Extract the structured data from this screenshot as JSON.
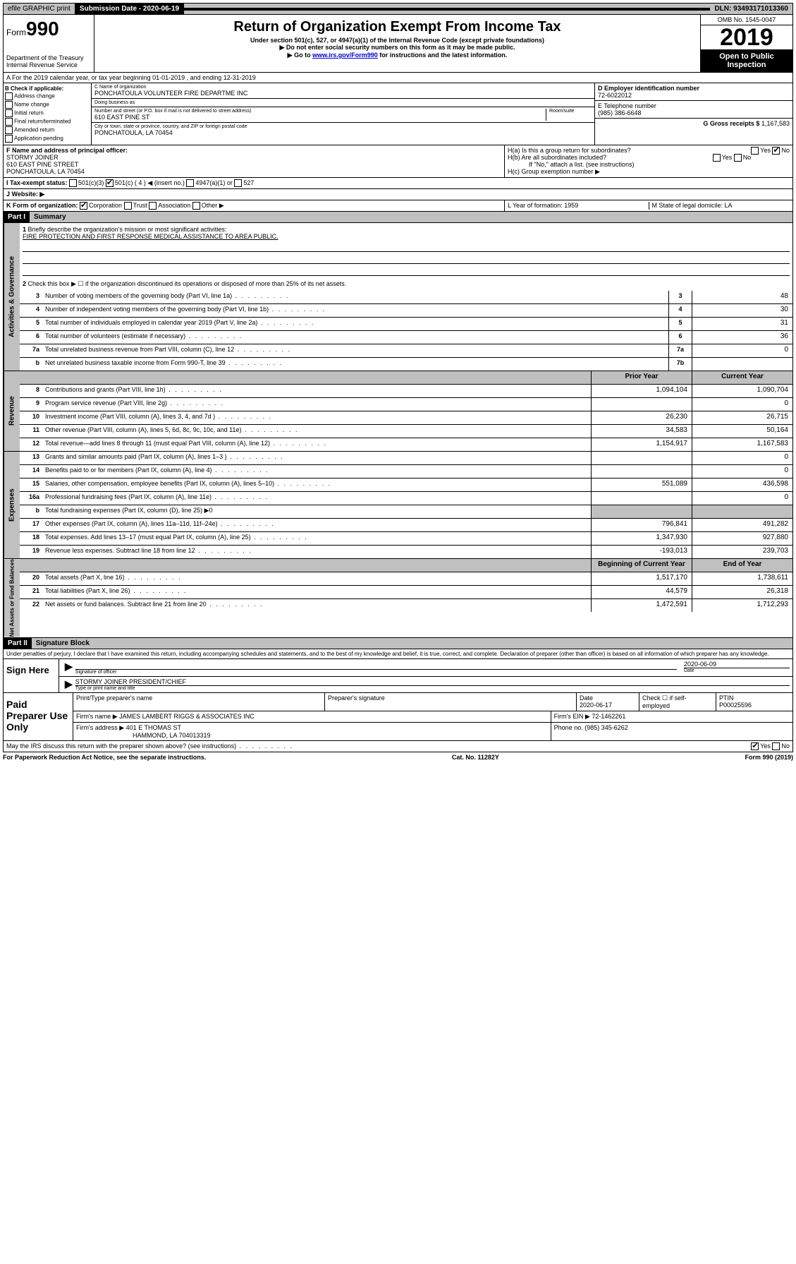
{
  "topbar": {
    "efile": "efile GRAPHIC print",
    "submission_label": "Submission Date - 2020-06-19",
    "dln": "DLN: 93493171013360"
  },
  "header": {
    "form_label": "Form",
    "form_num": "990",
    "dept": "Department of the Treasury\nInternal Revenue Service",
    "title": "Return of Organization Exempt From Income Tax",
    "subtitle": "Under section 501(c), 527, or 4947(a)(1) of the Internal Revenue Code (except private foundations)",
    "note1": "▶ Do not enter social security numbers on this form as it may be made public.",
    "note2_pre": "▶ Go to ",
    "note2_link": "www.irs.gov/Form990",
    "note2_post": " for instructions and the latest information.",
    "omb": "OMB No. 1545-0047",
    "year": "2019",
    "open": "Open to Public Inspection"
  },
  "row_a": "A For the 2019 calendar year, or tax year beginning 01-01-2019    , and ending 12-31-2019",
  "col_b": {
    "header": "B Check if applicable:",
    "items": [
      "Address change",
      "Name change",
      "Initial return",
      "Final return/terminated",
      "Amended return",
      "Application pending"
    ]
  },
  "col_c": {
    "name_label": "C Name of organization",
    "name": "PONCHATOULA VOLUNTEER FIRE DEPARTME INC",
    "dba_label": "Doing business as",
    "addr_label": "Number and street (or P.O. box if mail is not delivered to street address)",
    "room_label": "Room/suite",
    "addr": "610 EAST PINE ST",
    "city_label": "City or town, state or province, country, and ZIP or foreign postal code",
    "city": "PONCHATOULA, LA  70454"
  },
  "col_d": {
    "ein_label": "D Employer identification number",
    "ein": "72-6022012",
    "phone_label": "E Telephone number",
    "phone": "(985) 386-6648",
    "gross_label": "G Gross receipts $",
    "gross": "1,167,583"
  },
  "row_f": {
    "label": "F  Name and address of principal officer:",
    "name": "STORMY JOINER",
    "addr1": "610 EAST PINE STREET",
    "addr2": "PONCHATOULA, LA  70454"
  },
  "row_h": {
    "ha": "H(a)  Is this a group return for subordinates?",
    "hb": "H(b)  Are all subordinates included?",
    "hb_note": "If \"No,\" attach a list. (see instructions)",
    "hc": "H(c)  Group exemption number ▶"
  },
  "row_i": {
    "label": "I   Tax-exempt status:",
    "opts": [
      "501(c)(3)",
      "501(c) ( 4 ) ◀ (insert no.)",
      "4947(a)(1) or",
      "527"
    ]
  },
  "row_j": "J   Website: ▶",
  "row_k": {
    "label": "K Form of organization:",
    "opts": [
      "Corporation",
      "Trust",
      "Association",
      "Other ▶"
    ],
    "l": "L Year of formation: 1959",
    "m": "M State of legal domicile: LA"
  },
  "part1": {
    "header": "Part I",
    "title": "Summary",
    "line1": "Briefly describe the organization's mission or most significant activities:",
    "mission": "FIRE PROTECTION AND FIRST RESPONSE MEDICAL ASSISTANCE TO AREA PUBLIC.",
    "line2": "Check this box ▶ ☐  if the organization discontinued its operations or disposed of more than 25% of its net assets."
  },
  "gov_lines": [
    {
      "num": "3",
      "desc": "Number of voting members of the governing body (Part VI, line 1a)",
      "box": "3",
      "val": "48"
    },
    {
      "num": "4",
      "desc": "Number of independent voting members of the governing body (Part VI, line 1b)",
      "box": "4",
      "val": "30"
    },
    {
      "num": "5",
      "desc": "Total number of individuals employed in calendar year 2019 (Part V, line 2a)",
      "box": "5",
      "val": "31"
    },
    {
      "num": "6",
      "desc": "Total number of volunteers (estimate if necessary)",
      "box": "6",
      "val": "36"
    },
    {
      "num": "7a",
      "desc": "Total unrelated business revenue from Part VIII, column (C), line 12",
      "box": "7a",
      "val": "0"
    },
    {
      "num": "b",
      "desc": "Net unrelated business taxable income from Form 990-T, line 39",
      "box": "7b",
      "val": ""
    }
  ],
  "col_headers": {
    "prior": "Prior Year",
    "current": "Current Year"
  },
  "revenue_lines": [
    {
      "num": "8",
      "desc": "Contributions and grants (Part VIII, line 1h)",
      "prior": "1,094,104",
      "current": "1,090,704"
    },
    {
      "num": "9",
      "desc": "Program service revenue (Part VIII, line 2g)",
      "prior": "",
      "current": "0"
    },
    {
      "num": "10",
      "desc": "Investment income (Part VIII, column (A), lines 3, 4, and 7d )",
      "prior": "26,230",
      "current": "26,715"
    },
    {
      "num": "11",
      "desc": "Other revenue (Part VIII, column (A), lines 5, 6d, 8c, 9c, 10c, and 11e)",
      "prior": "34,583",
      "current": "50,164"
    },
    {
      "num": "12",
      "desc": "Total revenue—add lines 8 through 11 (must equal Part VIII, column (A), line 12)",
      "prior": "1,154,917",
      "current": "1,167,583"
    }
  ],
  "expense_lines": [
    {
      "num": "13",
      "desc": "Grants and similar amounts paid (Part IX, column (A), lines 1–3 )",
      "prior": "",
      "current": "0"
    },
    {
      "num": "14",
      "desc": "Benefits paid to or for members (Part IX, column (A), line 4)",
      "prior": "",
      "current": "0"
    },
    {
      "num": "15",
      "desc": "Salaries, other compensation, employee benefits (Part IX, column (A), lines 5–10)",
      "prior": "551,089",
      "current": "436,598"
    },
    {
      "num": "16a",
      "desc": "Professional fundraising fees (Part IX, column (A), line 11e)",
      "prior": "",
      "current": "0"
    },
    {
      "num": "b",
      "desc": "Total fundraising expenses (Part IX, column (D), line 25) ▶0",
      "prior": "",
      "current": "",
      "nobox": true
    },
    {
      "num": "17",
      "desc": "Other expenses (Part IX, column (A), lines 11a–11d, 11f–24e)",
      "prior": "796,841",
      "current": "491,282"
    },
    {
      "num": "18",
      "desc": "Total expenses. Add lines 13–17 (must equal Part IX, column (A), line 25)",
      "prior": "1,347,930",
      "current": "927,880"
    },
    {
      "num": "19",
      "desc": "Revenue less expenses. Subtract line 18 from line 12",
      "prior": "-193,013",
      "current": "239,703"
    }
  ],
  "net_headers": {
    "begin": "Beginning of Current Year",
    "end": "End of Year"
  },
  "net_lines": [
    {
      "num": "20",
      "desc": "Total assets (Part X, line 16)",
      "prior": "1,517,170",
      "current": "1,738,611"
    },
    {
      "num": "21",
      "desc": "Total liabilities (Part X, line 26)",
      "prior": "44,579",
      "current": "26,318"
    },
    {
      "num": "22",
      "desc": "Net assets or fund balances. Subtract line 21 from line 20",
      "prior": "1,472,591",
      "current": "1,712,293"
    }
  ],
  "part2": {
    "header": "Part II",
    "title": "Signature Block",
    "decl": "Under penalties of perjury, I declare that I have examined this return, including accompanying schedules and statements, and to the best of my knowledge and belief, it is true, correct, and complete. Declaration of preparer (other than officer) is based on all information of which preparer has any knowledge."
  },
  "sign": {
    "label": "Sign Here",
    "sig_label": "Signature of officer",
    "date": "2020-06-09",
    "date_label": "Date",
    "name": "STORMY JOINER  PRESIDENT/CHIEF",
    "name_label": "Type or print name and title"
  },
  "prep": {
    "label": "Paid Preparer Use Only",
    "h1": "Print/Type preparer's name",
    "h2": "Preparer's signature",
    "h3": "Date",
    "date": "2020-06-17",
    "h4": "Check ☐ if self-employed",
    "h5": "PTIN",
    "ptin": "P00025596",
    "firm_label": "Firm's name    ▶",
    "firm": "JAMES LAMBERT RIGGS & ASSOCIATES INC",
    "ein_label": "Firm's EIN ▶",
    "ein": "72-1462261",
    "addr_label": "Firm's address ▶",
    "addr": "401 E THOMAS ST",
    "addr2": "HAMMOND, LA  704013319",
    "phone_label": "Phone no.",
    "phone": "(985) 345-6262"
  },
  "bottom": {
    "q": "May the IRS discuss this return with the preparer shown above? (see instructions)",
    "notice": "For Paperwork Reduction Act Notice, see the separate instructions.",
    "cat": "Cat. No. 11282Y",
    "form": "Form 990 (2019)"
  },
  "side_labels": {
    "gov": "Activities & Governance",
    "rev": "Revenue",
    "exp": "Expenses",
    "net": "Net Assets or Fund Balances"
  }
}
